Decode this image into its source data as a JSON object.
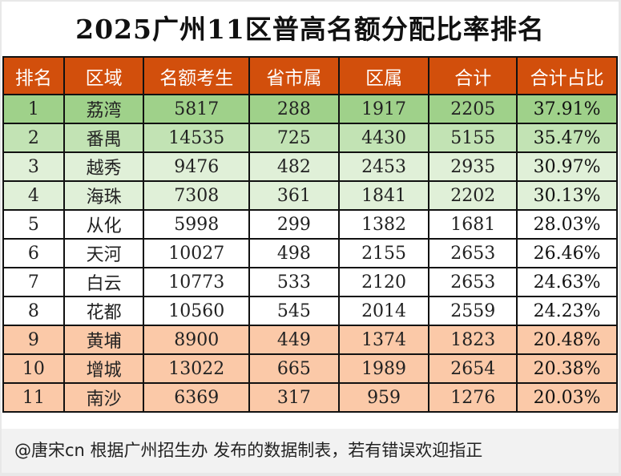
{
  "title": "2025广州11区普高名额分配比率排名",
  "headers": [
    "排名",
    "区域",
    "名额考生",
    "省市属",
    "区属",
    "合计",
    "合计占比"
  ],
  "row_colors": {
    "top1": "#9fd18a",
    "top2": "#c2e3b4",
    "top3_4": "#e0f0d8",
    "middle": "#ffffff",
    "bottom": "#fbc9a8"
  },
  "rows": [
    [
      "1",
      "荔湾",
      "5817",
      "288",
      "1917",
      "2205",
      "37.91%"
    ],
    [
      "2",
      "番禺",
      "14535",
      "725",
      "4430",
      "5155",
      "35.47%"
    ],
    [
      "3",
      "越秀",
      "9476",
      "482",
      "2453",
      "2935",
      "30.97%"
    ],
    [
      "4",
      "海珠",
      "7308",
      "361",
      "1841",
      "2202",
      "30.13%"
    ],
    [
      "5",
      "从化",
      "5998",
      "299",
      "1382",
      "1681",
      "28.03%"
    ],
    [
      "6",
      "天河",
      "10027",
      "498",
      "2155",
      "2653",
      "26.46%"
    ],
    [
      "7",
      "白云",
      "10773",
      "533",
      "2120",
      "2653",
      "24.63%"
    ],
    [
      "8",
      "花都",
      "10560",
      "545",
      "2014",
      "2559",
      "24.23%"
    ],
    [
      "9",
      "黄埔",
      "8900",
      "449",
      "1374",
      "1823",
      "20.48%"
    ],
    [
      "10",
      "增城",
      "13022",
      "665",
      "1989",
      "2654",
      "20.38%"
    ],
    [
      "11",
      "南沙",
      "6369",
      "317",
      "959",
      "1276",
      "20.03%"
    ]
  ],
  "footer": "@唐宋cn 根据广州招生办 发布的数据制表，若有错误欢迎指正"
}
